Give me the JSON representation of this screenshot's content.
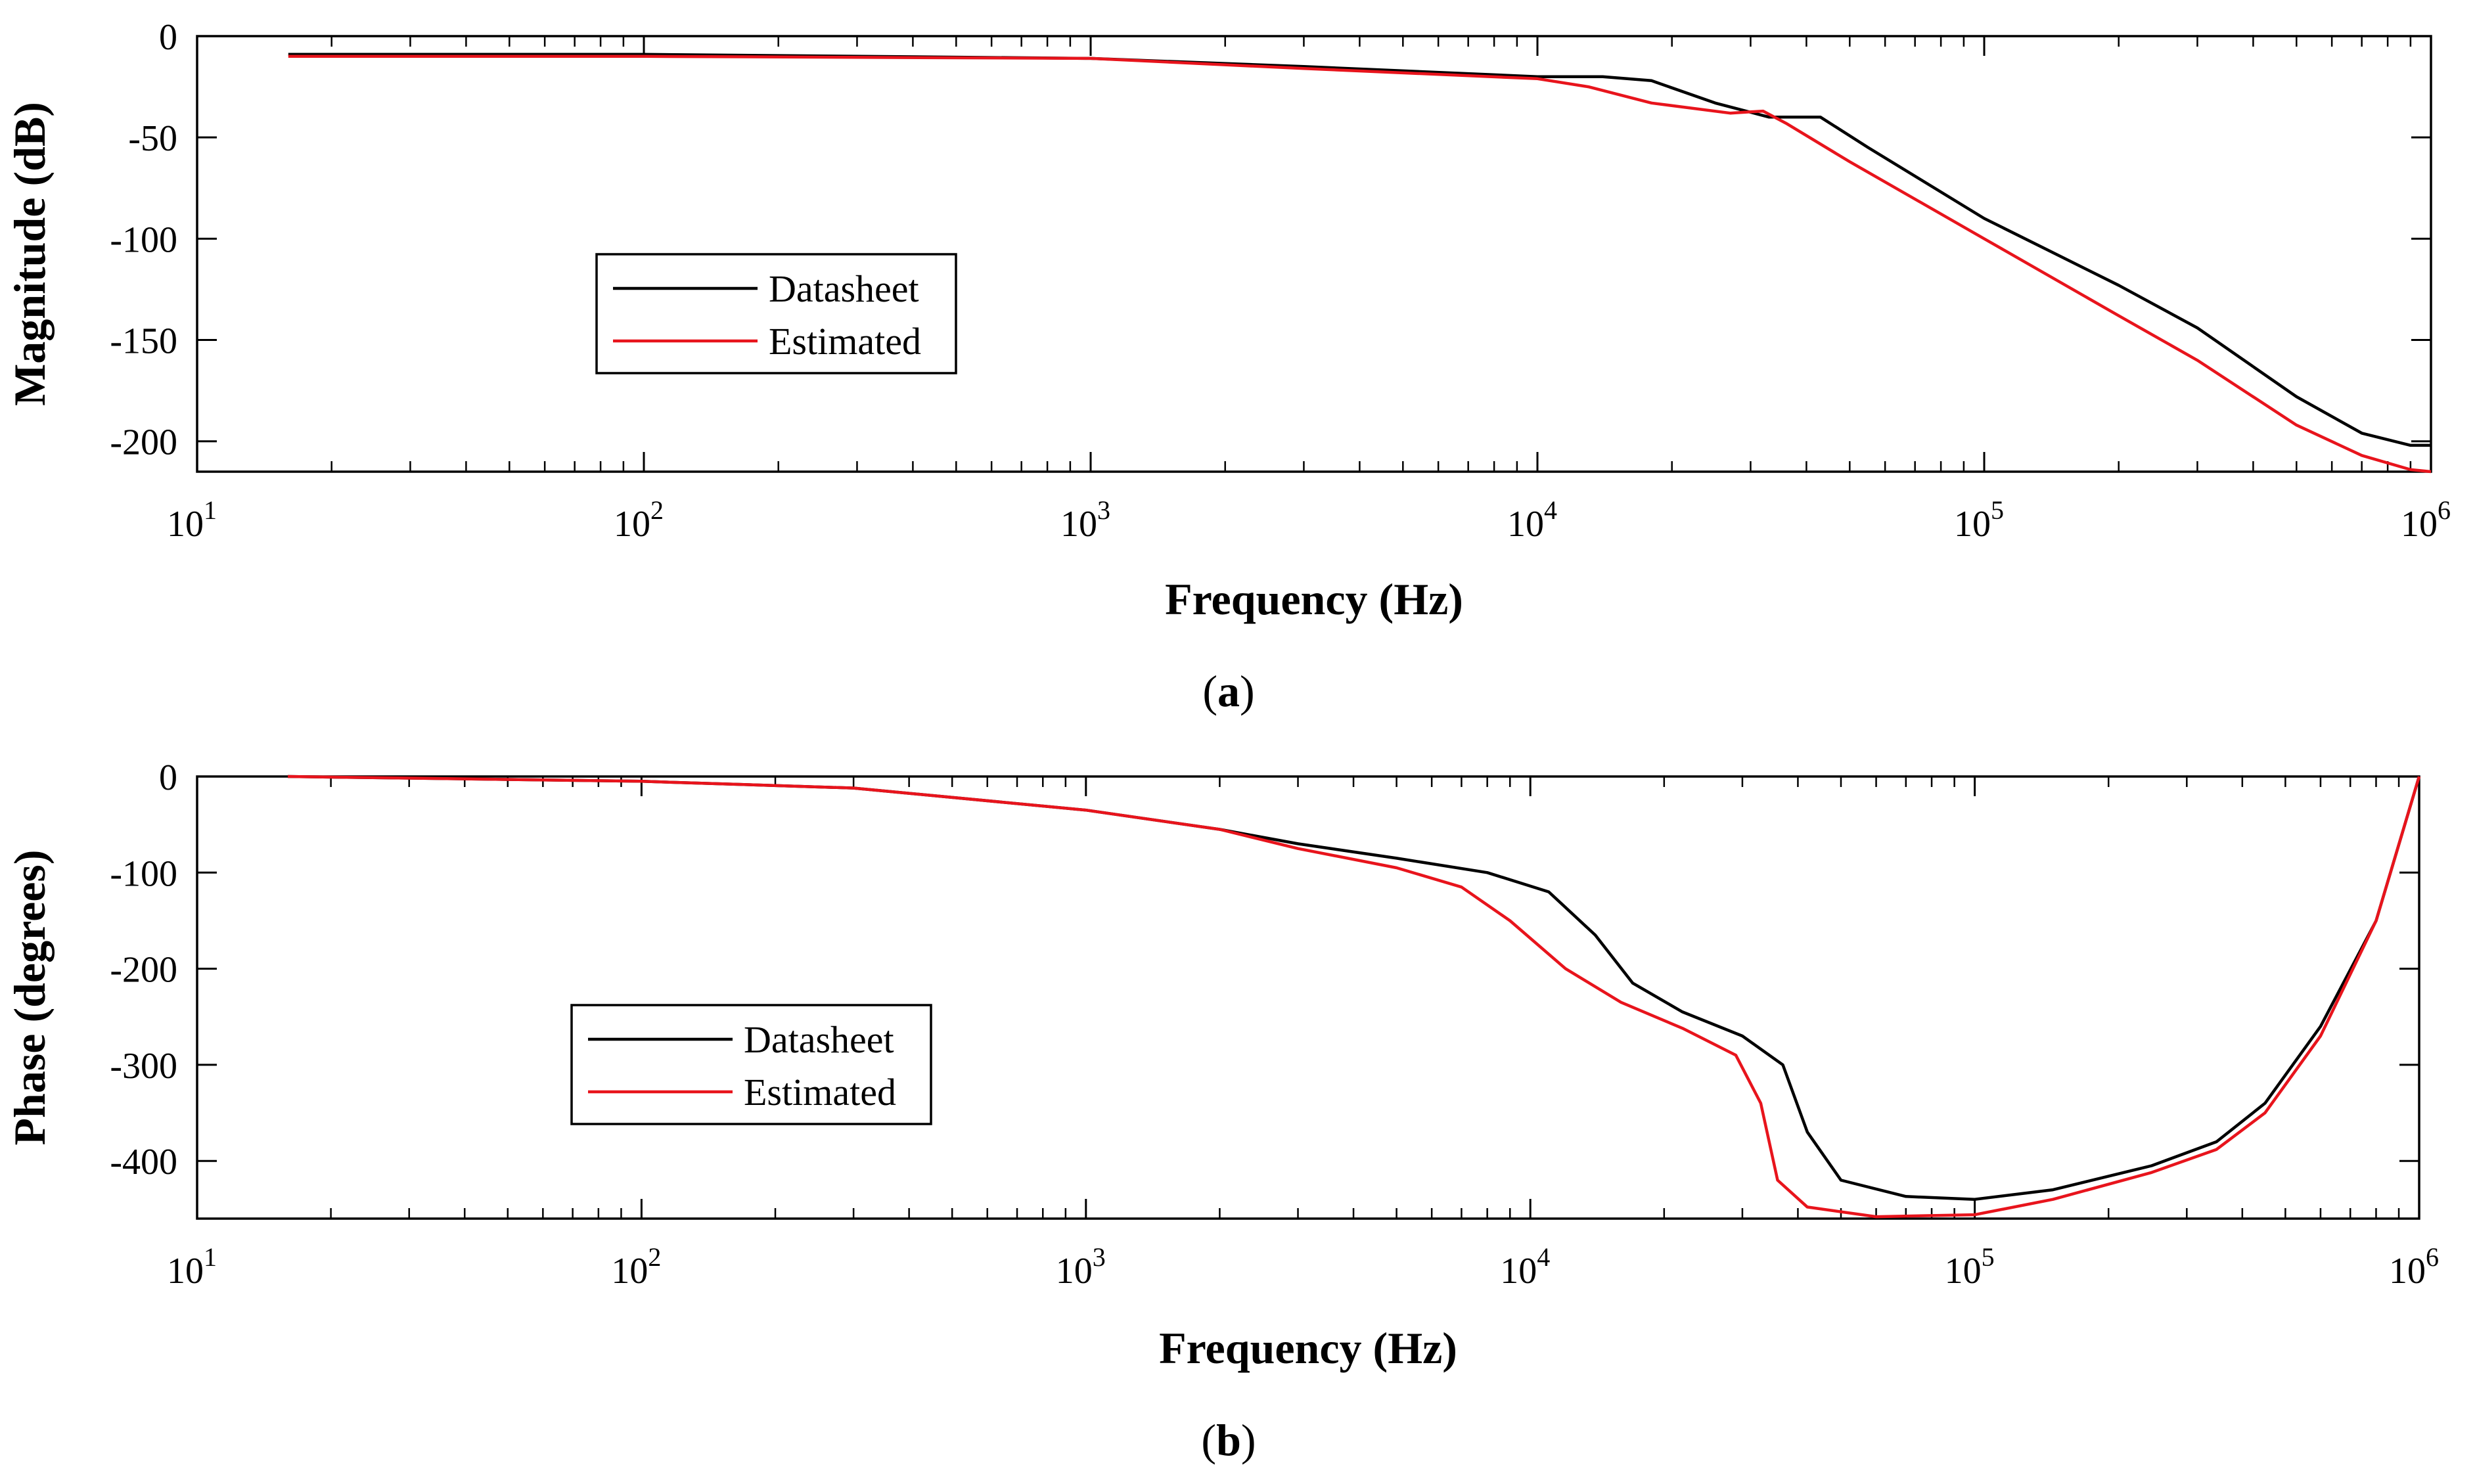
{
  "chart_data": [
    {
      "id": "a",
      "type": "line",
      "xscale": "log",
      "caption": {
        "open": "(",
        "letter": "a",
        "close": ")"
      },
      "xlabel": "Frequency (Hz)",
      "ylabel": "Magnitude (dB)",
      "xlim": [
        10,
        1000000
      ],
      "ylim": [
        -215,
        0
      ],
      "yticks": [
        0,
        -50,
        -100,
        -150,
        -200
      ],
      "ytick_labels": [
        "0",
        "-50",
        "-100",
        "-150",
        "-200"
      ],
      "xtick_decades": [
        {
          "base": "10",
          "exp": "1"
        },
        {
          "base": "10",
          "exp": "2"
        },
        {
          "base": "10",
          "exp": "3"
        },
        {
          "base": "10",
          "exp": "4"
        },
        {
          "base": "10",
          "exp": "5"
        },
        {
          "base": "10",
          "exp": "6"
        }
      ],
      "legend": {
        "position": "center-left",
        "entries": [
          "Datasheet",
          "Estimated"
        ]
      },
      "series": [
        {
          "name": "Datasheet",
          "color": "#000000",
          "points": [
            [
              16,
              -9
            ],
            [
              100,
              -9
            ],
            [
              1000,
              -11
            ],
            [
              3000,
              -15
            ],
            [
              10000,
              -20
            ],
            [
              14000,
              -20
            ],
            [
              18000,
              -22
            ],
            [
              25000,
              -33
            ],
            [
              33000,
              -40
            ],
            [
              43000,
              -40
            ],
            [
              55000,
              -55
            ],
            [
              100000,
              -90
            ],
            [
              200000,
              -123
            ],
            [
              300000,
              -144
            ],
            [
              500000,
              -178
            ],
            [
              700000,
              -196
            ],
            [
              900000,
              -202
            ],
            [
              1000000,
              -202
            ]
          ]
        },
        {
          "name": "Estimated",
          "color": "#e8141c",
          "points": [
            [
              16,
              -10
            ],
            [
              100,
              -10
            ],
            [
              1000,
              -11
            ],
            [
              3000,
              -16
            ],
            [
              10000,
              -21
            ],
            [
              13000,
              -25
            ],
            [
              18000,
              -33
            ],
            [
              27000,
              -38
            ],
            [
              32000,
              -37
            ],
            [
              36000,
              -43
            ],
            [
              50000,
              -62
            ],
            [
              100000,
              -100
            ],
            [
              200000,
              -138
            ],
            [
              300000,
              -160
            ],
            [
              500000,
              -192
            ],
            [
              700000,
              -207
            ],
            [
              900000,
              -214
            ],
            [
              1000000,
              -215
            ]
          ]
        }
      ]
    },
    {
      "id": "b",
      "type": "line",
      "xscale": "log",
      "caption": {
        "open": "(",
        "letter": "b",
        "close": ")"
      },
      "xlabel": "Frequency (Hz)",
      "ylabel": "Phase (degrees)",
      "xlim": [
        10,
        1000000
      ],
      "ylim": [
        -460,
        0
      ],
      "yticks": [
        0,
        -100,
        -200,
        -300,
        -400
      ],
      "ytick_labels": [
        "0",
        "-100",
        "-200",
        "-300",
        "-400"
      ],
      "xtick_decades": [
        {
          "base": "10",
          "exp": "1"
        },
        {
          "base": "10",
          "exp": "2"
        },
        {
          "base": "10",
          "exp": "3"
        },
        {
          "base": "10",
          "exp": "4"
        },
        {
          "base": "10",
          "exp": "5"
        },
        {
          "base": "10",
          "exp": "6"
        }
      ],
      "legend": {
        "position": "center-left",
        "entries": [
          "Datasheet",
          "Estimated"
        ]
      },
      "series": [
        {
          "name": "Datasheet",
          "color": "#000000",
          "points": [
            [
              16,
              0
            ],
            [
              100,
              -5
            ],
            [
              300,
              -12
            ],
            [
              1000,
              -35
            ],
            [
              2000,
              -55
            ],
            [
              3000,
              -70
            ],
            [
              5000,
              -85
            ],
            [
              8000,
              -100
            ],
            [
              11000,
              -120
            ],
            [
              14000,
              -165
            ],
            [
              17000,
              -215
            ],
            [
              22000,
              -245
            ],
            [
              30000,
              -270
            ],
            [
              37000,
              -300
            ],
            [
              42000,
              -370
            ],
            [
              50000,
              -420
            ],
            [
              70000,
              -437
            ],
            [
              100000,
              -440
            ],
            [
              150000,
              -430
            ],
            [
              250000,
              -405
            ],
            [
              350000,
              -380
            ],
            [
              450000,
              -340
            ],
            [
              600000,
              -260
            ],
            [
              800000,
              -150
            ],
            [
              1000000,
              0
            ]
          ]
        },
        {
          "name": "Estimated",
          "color": "#e8141c",
          "points": [
            [
              16,
              0
            ],
            [
              100,
              -5
            ],
            [
              300,
              -12
            ],
            [
              1000,
              -35
            ],
            [
              2000,
              -55
            ],
            [
              3000,
              -75
            ],
            [
              5000,
              -95
            ],
            [
              7000,
              -115
            ],
            [
              9000,
              -150
            ],
            [
              12000,
              -200
            ],
            [
              16000,
              -235
            ],
            [
              22000,
              -262
            ],
            [
              29000,
              -290
            ],
            [
              33000,
              -340
            ],
            [
              36000,
              -420
            ],
            [
              42000,
              -448
            ],
            [
              60000,
              -458
            ],
            [
              100000,
              -456
            ],
            [
              150000,
              -440
            ],
            [
              250000,
              -412
            ],
            [
              350000,
              -388
            ],
            [
              450000,
              -350
            ],
            [
              600000,
              -270
            ],
            [
              800000,
              -150
            ],
            [
              1000000,
              0
            ]
          ]
        }
      ]
    }
  ]
}
